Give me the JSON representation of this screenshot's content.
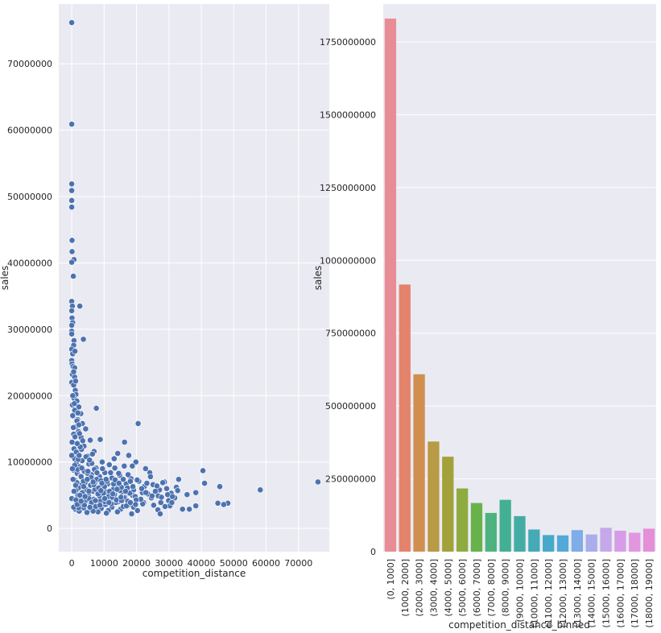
{
  "chart_data": [
    {
      "type": "scatter",
      "xlabel": "competition_distance",
      "ylabel": "sales",
      "xlim": [
        -4000,
        79500
      ],
      "ylim": [
        -3500000,
        79000000
      ],
      "x_ticks": [
        0,
        10000,
        20000,
        30000,
        40000,
        50000,
        60000,
        70000
      ],
      "x_tick_labels": [
        "0",
        "10000",
        "20000",
        "30000",
        "40000",
        "50000",
        "60000",
        "70000"
      ],
      "y_ticks": [
        0,
        10000000,
        20000000,
        30000000,
        40000000,
        50000000,
        60000000,
        70000000
      ],
      "y_tick_labels": [
        "0",
        "10000000",
        "20000000",
        "30000000",
        "40000000",
        "50000000",
        "60000000",
        "70000000"
      ],
      "grid": true,
      "point_color": "#4c72b0",
      "points": [
        [
          0,
          76200000
        ],
        [
          0,
          60900000
        ],
        [
          0,
          51900000
        ],
        [
          0,
          50900000
        ],
        [
          0,
          49400000
        ],
        [
          0,
          48400000
        ],
        [
          100,
          43400000
        ],
        [
          100,
          41700000
        ],
        [
          700,
          40500000
        ],
        [
          0,
          40100000
        ],
        [
          500,
          38000000
        ],
        [
          0,
          34200000
        ],
        [
          200,
          33500000
        ],
        [
          2500,
          33500000
        ],
        [
          0,
          32800000
        ],
        [
          100,
          31700000
        ],
        [
          300,
          31000000
        ],
        [
          0,
          30600000
        ],
        [
          0,
          29700000
        ],
        [
          0,
          29300000
        ],
        [
          700,
          28300000
        ],
        [
          600,
          27600000
        ],
        [
          3600,
          28500000
        ],
        [
          0,
          27000000
        ],
        [
          300,
          26300000
        ],
        [
          0,
          25300000
        ],
        [
          100,
          24800000
        ],
        [
          400,
          24400000
        ],
        [
          900,
          24200000
        ],
        [
          200,
          23200000
        ],
        [
          900,
          22800000
        ],
        [
          0,
          22000000
        ],
        [
          600,
          21600000
        ],
        [
          1100,
          20800000
        ],
        [
          1300,
          20200000
        ],
        [
          700,
          19600000
        ],
        [
          1600,
          19200000
        ],
        [
          200,
          18600000
        ],
        [
          2200,
          18300000
        ],
        [
          7600,
          18100000
        ],
        [
          900,
          17800000
        ],
        [
          2800,
          17300000
        ],
        [
          400,
          16900000
        ],
        [
          1800,
          16400000
        ],
        [
          3300,
          15800000
        ],
        [
          20500,
          15800000
        ],
        [
          1200,
          15300000
        ],
        [
          4300,
          15000000
        ],
        [
          2100,
          14600000
        ],
        [
          600,
          14200000
        ],
        [
          2900,
          13700000
        ],
        [
          5700,
          13300000
        ],
        [
          8800,
          13400000
        ],
        [
          1500,
          12800000
        ],
        [
          3800,
          12400000
        ],
        [
          16300,
          13000000
        ],
        [
          700,
          12000000
        ],
        [
          2600,
          11800000
        ],
        [
          6900,
          11600000
        ],
        [
          14200,
          11300000
        ],
        [
          1900,
          11200000
        ],
        [
          4800,
          10900000
        ],
        [
          17600,
          11000000
        ],
        [
          13100,
          10500000
        ],
        [
          900,
          10500000
        ],
        [
          3200,
          10200000
        ],
        [
          9400,
          10000000
        ],
        [
          19800,
          10000000
        ],
        [
          1400,
          9800000
        ],
        [
          5300,
          9700000
        ],
        [
          11600,
          9600000
        ],
        [
          16200,
          9400000
        ],
        [
          2300,
          9300000
        ],
        [
          7500,
          9100000
        ],
        [
          22800,
          9000000
        ],
        [
          40500,
          8700000
        ],
        [
          500,
          8800000
        ],
        [
          3900,
          8600000
        ],
        [
          10200,
          8400000
        ],
        [
          24100,
          8400000
        ],
        [
          1700,
          8300000
        ],
        [
          6100,
          8100000
        ],
        [
          14800,
          8000000
        ],
        [
          2700,
          7900000
        ],
        [
          8600,
          7800000
        ],
        [
          12400,
          7600000
        ],
        [
          18300,
          7500000
        ],
        [
          33000,
          7400000
        ],
        [
          900,
          7300000
        ],
        [
          4500,
          7200000
        ],
        [
          20700,
          7100000
        ],
        [
          28600,
          7000000
        ],
        [
          41000,
          6800000
        ],
        [
          76000,
          7000000
        ],
        [
          1600,
          6900000
        ],
        [
          7100,
          6800000
        ],
        [
          11100,
          6700000
        ],
        [
          16800,
          6700000
        ],
        [
          25100,
          6600000
        ],
        [
          3200,
          6600000
        ],
        [
          5800,
          6500000
        ],
        [
          9700,
          6400000
        ],
        [
          14200,
          6300000
        ],
        [
          22400,
          6300000
        ],
        [
          32300,
          6200000
        ],
        [
          45700,
          6300000
        ],
        [
          2100,
          6100000
        ],
        [
          4100,
          6000000
        ],
        [
          8200,
          6000000
        ],
        [
          12800,
          5900000
        ],
        [
          19100,
          5800000
        ],
        [
          27100,
          5800000
        ],
        [
          58200,
          5800000
        ],
        [
          1300,
          5700000
        ],
        [
          6500,
          5600000
        ],
        [
          10600,
          5500000
        ],
        [
          15500,
          5500000
        ],
        [
          21800,
          5400000
        ],
        [
          30700,
          5300000
        ],
        [
          38300,
          5400000
        ],
        [
          3500,
          5300000
        ],
        [
          7900,
          5200000
        ],
        [
          13200,
          5100000
        ],
        [
          18700,
          5000000
        ],
        [
          35600,
          5100000
        ],
        [
          1900,
          5000000
        ],
        [
          5200,
          4900000
        ],
        [
          9300,
          4800000
        ],
        [
          16400,
          4700000
        ],
        [
          24600,
          4600000
        ],
        [
          31800,
          4600000
        ],
        [
          2800,
          4500000
        ],
        [
          6800,
          4400000
        ],
        [
          11900,
          4400000
        ],
        [
          20100,
          4300000
        ],
        [
          29900,
          4200000
        ],
        [
          0,
          4500000
        ],
        [
          4300,
          4200000
        ],
        [
          8800,
          4100000
        ],
        [
          14300,
          4000000
        ],
        [
          22200,
          3900000
        ],
        [
          27500,
          3900000
        ],
        [
          45100,
          3800000
        ],
        [
          48200,
          3800000
        ],
        [
          1500,
          3800000
        ],
        [
          5900,
          3700000
        ],
        [
          10400,
          3600000
        ],
        [
          17700,
          3600000
        ],
        [
          25300,
          3500000
        ],
        [
          30300,
          3400000
        ],
        [
          46900,
          3600000
        ],
        [
          2600,
          3400000
        ],
        [
          7400,
          3300000
        ],
        [
          12400,
          3200000
        ],
        [
          19100,
          3200000
        ],
        [
          38300,
          3400000
        ],
        [
          3700,
          3100000
        ],
        [
          9100,
          3000000
        ],
        [
          15100,
          2900000
        ],
        [
          26600,
          2800000
        ],
        [
          34200,
          2900000
        ],
        [
          36300,
          2900000
        ],
        [
          1100,
          2900000
        ],
        [
          5600,
          2800000
        ],
        [
          11300,
          2700000
        ],
        [
          20300,
          2700000
        ],
        [
          27300,
          2200000
        ],
        [
          2300,
          2600000
        ],
        [
          8100,
          2500000
        ],
        [
          14100,
          2500000
        ],
        [
          18500,
          2200000
        ],
        [
          4700,
          2400000
        ],
        [
          10700,
          2300000
        ],
        [
          6600,
          2600000
        ],
        [
          13600,
          3900000
        ],
        [
          17200,
          6100000
        ],
        [
          23500,
          5200000
        ],
        [
          26700,
          4900000
        ],
        [
          15900,
          3300000
        ],
        [
          21900,
          3700000
        ],
        [
          28800,
          3300000
        ],
        [
          4900,
          8300000
        ],
        [
          6200,
          9800000
        ],
        [
          3000,
          11900000
        ],
        [
          2400,
          14300000
        ],
        [
          1600,
          16200000
        ],
        [
          3400,
          13200000
        ],
        [
          4100,
          6900000
        ],
        [
          2900,
          7800000
        ],
        [
          5300,
          4500000
        ],
        [
          7200,
          5900000
        ],
        [
          8500,
          4900000
        ],
        [
          9800,
          5300000
        ],
        [
          11400,
          4800000
        ],
        [
          12900,
          6700000
        ],
        [
          14900,
          5700000
        ],
        [
          16100,
          4600000
        ],
        [
          17900,
          5300000
        ],
        [
          19600,
          4800000
        ],
        [
          21300,
          4400000
        ],
        [
          23200,
          6800000
        ],
        [
          24800,
          4900000
        ],
        [
          26300,
          6400000
        ],
        [
          28100,
          6900000
        ],
        [
          29600,
          5100000
        ],
        [
          31100,
          4800000
        ],
        [
          32700,
          5700000
        ],
        [
          700,
          5600000
        ],
        [
          1200,
          6500000
        ],
        [
          1800,
          8900000
        ],
        [
          2000,
          10400000
        ],
        [
          2600,
          12300000
        ],
        [
          3100,
          9100000
        ],
        [
          3600,
          7100000
        ],
        [
          4400,
          10800000
        ],
        [
          5000,
          8600000
        ],
        [
          5500,
          10300000
        ],
        [
          6000,
          7700000
        ],
        [
          6400,
          11200000
        ],
        [
          7000,
          8900000
        ],
        [
          7700,
          7400000
        ],
        [
          8300,
          6100000
        ],
        [
          9000,
          7200000
        ],
        [
          9500,
          9000000
        ],
        [
          10100,
          6300000
        ],
        [
          10900,
          7100000
        ],
        [
          11700,
          5600000
        ],
        [
          12500,
          4700000
        ],
        [
          13400,
          7300000
        ],
        [
          14500,
          8300000
        ],
        [
          15300,
          6200000
        ],
        [
          16600,
          5600000
        ],
        [
          17300,
          4100000
        ],
        [
          18100,
          7100000
        ],
        [
          18900,
          6300000
        ],
        [
          19900,
          4300000
        ],
        [
          400,
          7400000
        ],
        [
          900,
          9500000
        ],
        [
          1400,
          11500000
        ],
        [
          1000,
          13800000
        ],
        [
          1700,
          12800000
        ],
        [
          2200,
          15600000
        ],
        [
          1900,
          17400000
        ],
        [
          800,
          18800000
        ],
        [
          300,
          20000000
        ],
        [
          1200,
          22200000
        ],
        [
          500,
          15200000
        ],
        [
          0,
          11000000
        ],
        [
          200,
          9000000
        ],
        [
          100,
          13000000
        ],
        [
          300,
          17000000
        ],
        [
          600,
          23600000
        ],
        [
          1000,
          26700000
        ],
        [
          2300,
          11000000
        ],
        [
          3300,
          5400000
        ],
        [
          4600,
          5800000
        ],
        [
          6100,
          3900000
        ],
        [
          7300,
          4200000
        ],
        [
          8700,
          3500000
        ],
        [
          10300,
          4000000
        ],
        [
          12200,
          3700000
        ],
        [
          13800,
          4300000
        ],
        [
          15400,
          4200000
        ],
        [
          16900,
          3400000
        ],
        [
          18100,
          3900000
        ],
        [
          19700,
          3600000
        ],
        [
          2100,
          3100000
        ],
        [
          3900,
          3500000
        ],
        [
          5600,
          3200000
        ],
        [
          1300,
          4300000
        ],
        [
          2500,
          5000000
        ],
        [
          3700,
          6300000
        ],
        [
          4800,
          7400000
        ],
        [
          6800,
          6600000
        ],
        [
          8100,
          5200000
        ],
        [
          9300,
          6800000
        ],
        [
          10600,
          7400000
        ],
        [
          12000,
          8400000
        ],
        [
          13300,
          9100000
        ],
        [
          14600,
          6800000
        ],
        [
          15900,
          7400000
        ],
        [
          17400,
          8100000
        ],
        [
          18700,
          9400000
        ],
        [
          20200,
          7300000
        ],
        [
          21600,
          6000000
        ],
        [
          22900,
          5400000
        ],
        [
          24300,
          7800000
        ],
        [
          25800,
          5600000
        ],
        [
          27700,
          4700000
        ],
        [
          29300,
          6000000
        ],
        [
          30900,
          3900000
        ],
        [
          600,
          3200000
        ],
        [
          1700,
          3600000
        ],
        [
          2900,
          4100000
        ],
        [
          4100,
          4800000
        ],
        [
          5300,
          5600000
        ],
        [
          6600,
          7000000
        ],
        [
          7800,
          8400000
        ],
        [
          9000,
          5700000
        ],
        [
          10200,
          4500000
        ],
        [
          11500,
          3900000
        ],
        [
          12700,
          5200000
        ],
        [
          14000,
          5900000
        ],
        [
          15200,
          4700000
        ]
      ]
    },
    {
      "type": "bar",
      "xlabel": "competition_distance_binned",
      "ylabel": "sales",
      "ylim": [
        0,
        1880000000
      ],
      "y_ticks": [
        0,
        250000000,
        500000000,
        750000000,
        1000000000,
        1250000000,
        1500000000,
        1750000000
      ],
      "y_tick_labels": [
        "0",
        "250000000",
        "500000000",
        "750000000",
        "1000000000",
        "1250000000",
        "1500000000",
        "1750000000"
      ],
      "grid": true,
      "categories": [
        "(0, 1000]",
        "(1000, 2000]",
        "(2000, 3000]",
        "(3000, 4000]",
        "(4000, 5000]",
        "(5000, 6000]",
        "(6000, 7000]",
        "(7000, 8000]",
        "(8000, 9000]",
        "(9000, 10000]",
        "(10000, 11000]",
        "(11000, 12000]",
        "(12000, 13000]",
        "(13000, 14000]",
        "(14000, 15000]",
        "(15000, 16000]",
        "(16000, 17000]",
        "(17000, 18000]",
        "(18000, 19000]"
      ],
      "values": [
        1830000000,
        917000000,
        609000000,
        378000000,
        326000000,
        217000000,
        167000000,
        133000000,
        178000000,
        122000000,
        76000000,
        57000000,
        56000000,
        74000000,
        59000000,
        82000000,
        72000000,
        65000000,
        79000000
      ],
      "colors": [
        "#e88d96",
        "#e4836b",
        "#d18f4f",
        "#b99a45",
        "#a3a139",
        "#8dab3f",
        "#67b24b",
        "#4db37e",
        "#43b094",
        "#43ada4",
        "#44aab5",
        "#46a9c9",
        "#52a9d8",
        "#7eade8",
        "#a9ade9",
        "#c5a8ea",
        "#d79ce7",
        "#e097e0",
        "#e48fd7"
      ]
    }
  ]
}
